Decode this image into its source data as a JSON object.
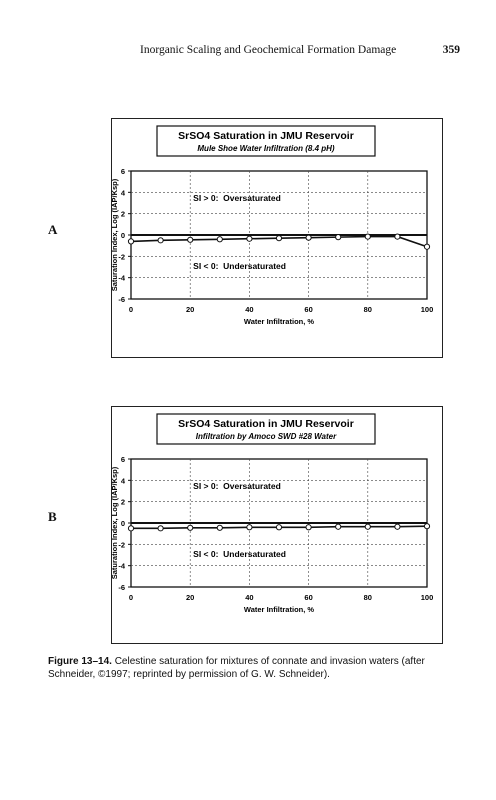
{
  "header": {
    "running_title": "Inorganic Scaling and Geochemical Formation Damage",
    "page_number": "359"
  },
  "figure": {
    "label": "Figure 13–14.",
    "caption": "Celestine saturation for mixtures of connate and invasion waters (after Schneider, ©1997; reprinted by permission of G. W. Schneider)."
  },
  "chart_data": [
    {
      "panel": "A",
      "type": "line",
      "title": "SrSO4 Saturation in JMU Reservoir",
      "subtitle": "Mule Shoe Water Infiltration (8.4 pH)",
      "xlabel": "Water Infiltration, %",
      "ylabel": "Saturation Index, Log (IAP/Ksp)",
      "xlim": [
        0,
        100
      ],
      "ylim": [
        -6,
        6
      ],
      "xticks": [
        "0",
        "20",
        "40",
        "60",
        "80",
        "100"
      ],
      "yticks": [
        "6",
        "4",
        "2",
        "0",
        "-2",
        "-4",
        "-6"
      ],
      "annotations": [
        "SI > 0:  Oversaturated",
        "SI < 0:  Undersaturated"
      ],
      "grid": true,
      "series": [
        {
          "x": [
            0,
            10,
            20,
            30,
            40,
            50,
            60,
            70,
            80,
            90,
            100
          ],
          "values": [
            -0.6,
            -0.5,
            -0.45,
            -0.4,
            -0.35,
            -0.3,
            -0.25,
            -0.2,
            -0.15,
            -0.15,
            -1.1
          ]
        }
      ]
    },
    {
      "panel": "B",
      "type": "line",
      "title": "SrSO4 Saturation in JMU Reservoir",
      "subtitle": "Infiltration by Amoco SWD #28 Water",
      "xlabel": "Water Infiltration, %",
      "ylabel": "Saturation Index, Log (IAP/Ksp)",
      "xlim": [
        0,
        100
      ],
      "ylim": [
        -6,
        6
      ],
      "xticks": [
        "0",
        "20",
        "40",
        "60",
        "80",
        "100"
      ],
      "yticks": [
        "6",
        "4",
        "2",
        "0",
        "-2",
        "-4",
        "-6"
      ],
      "annotations": [
        "SI > 0:  Oversaturated",
        "SI < 0:  Undersaturated"
      ],
      "grid": true,
      "series": [
        {
          "x": [
            0,
            10,
            20,
            30,
            40,
            50,
            60,
            70,
            80,
            90,
            100
          ],
          "values": [
            -0.5,
            -0.5,
            -0.45,
            -0.45,
            -0.4,
            -0.4,
            -0.4,
            -0.35,
            -0.35,
            -0.35,
            -0.3
          ]
        }
      ]
    }
  ]
}
